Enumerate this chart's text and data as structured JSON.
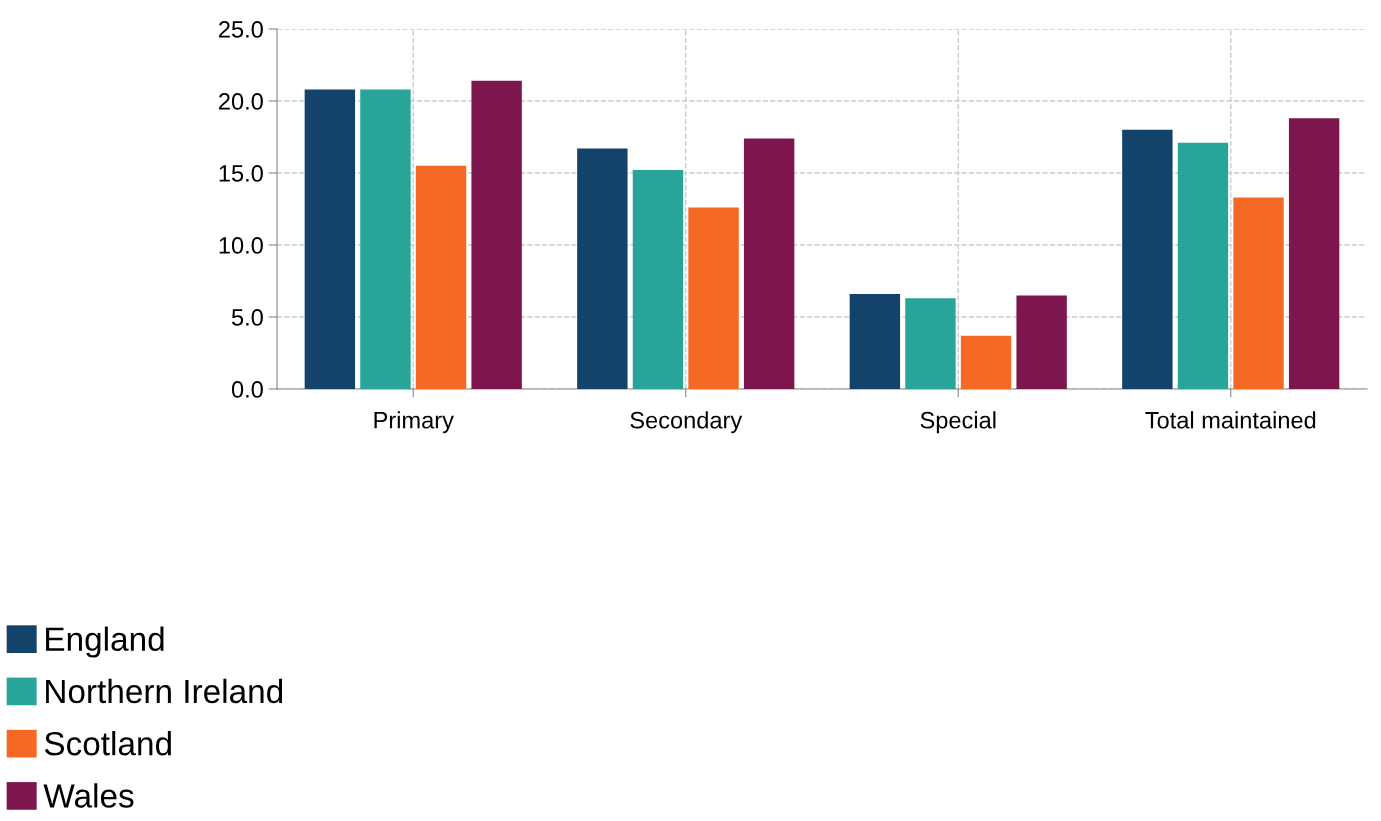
{
  "chart_data": {
    "type": "bar",
    "categories": [
      "Primary",
      "Secondary",
      "Special",
      "Total maintained"
    ],
    "series": [
      {
        "name": "England",
        "color": "#13426b",
        "values": [
          20.8,
          16.7,
          6.6,
          18.0
        ]
      },
      {
        "name": "Northern Ireland",
        "color": "#28a498",
        "values": [
          20.8,
          15.2,
          6.3,
          17.1
        ]
      },
      {
        "name": "Scotland",
        "color": "#f46a25",
        "values": [
          15.5,
          12.6,
          3.7,
          13.3
        ]
      },
      {
        "name": "Wales",
        "color": "#7d164d",
        "values": [
          21.4,
          17.4,
          6.5,
          18.8
        ]
      }
    ],
    "ylim": [
      0,
      25
    ],
    "yticks": [
      {
        "value": 0,
        "label": "0.0"
      },
      {
        "value": 5,
        "label": "5.0"
      },
      {
        "value": 10,
        "label": "10.0"
      },
      {
        "value": 15,
        "label": "15.0"
      },
      {
        "value": 20,
        "label": "20.0"
      },
      {
        "value": 25,
        "label": "25.0"
      }
    ],
    "grid": true,
    "legend": "bottom left"
  }
}
